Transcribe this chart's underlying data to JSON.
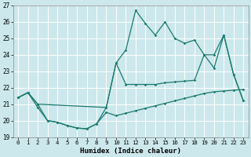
{
  "xlabel": "Humidex (Indice chaleur)",
  "bg_color": "#cce8ec",
  "grid_color": "#ffffff",
  "line_color": "#1a7a6e",
  "xlim": [
    -0.5,
    23.5
  ],
  "ylim": [
    19,
    27
  ],
  "yticks": [
    19,
    20,
    21,
    22,
    23,
    24,
    25,
    26,
    27
  ],
  "xticks": [
    0,
    1,
    2,
    3,
    4,
    5,
    6,
    7,
    8,
    9,
    10,
    11,
    12,
    13,
    14,
    15,
    16,
    17,
    18,
    19,
    20,
    21,
    22,
    23
  ],
  "line_top_x": [
    0,
    1,
    2,
    3,
    4,
    5,
    6,
    7,
    8,
    9,
    10,
    11,
    12,
    13,
    14,
    15,
    16,
    17,
    18,
    19,
    20,
    21,
    22,
    23
  ],
  "line_top_y": [
    21.4,
    21.7,
    21.0,
    20.0,
    19.9,
    19.7,
    19.55,
    19.5,
    19.8,
    20.8,
    23.5,
    24.3,
    26.7,
    25.9,
    25.2,
    26.0,
    25.0,
    24.7,
    24.9,
    24.0,
    23.2,
    25.2,
    22.8,
    21.2
  ],
  "line_mid_x": [
    0,
    1,
    2,
    9,
    10,
    11,
    12,
    13,
    14,
    15,
    16,
    17,
    18,
    19,
    20,
    21,
    22,
    23
  ],
  "line_mid_y": [
    21.4,
    21.7,
    21.0,
    20.8,
    23.5,
    22.2,
    22.2,
    22.2,
    22.2,
    22.3,
    22.35,
    22.4,
    22.45,
    24.0,
    24.0,
    25.2,
    22.8,
    21.2
  ],
  "line_bot_x": [
    0,
    1,
    2,
    3,
    4,
    5,
    6,
    7,
    8,
    9,
    10,
    11,
    12,
    13,
    14,
    15,
    16,
    17,
    18,
    19,
    20,
    21,
    22,
    23
  ],
  "line_bot_y": [
    21.4,
    21.7,
    20.8,
    20.0,
    19.9,
    19.7,
    19.55,
    19.5,
    19.8,
    20.5,
    20.3,
    20.45,
    20.6,
    20.75,
    20.9,
    21.05,
    21.2,
    21.35,
    21.5,
    21.65,
    21.75,
    21.8,
    21.85,
    21.9
  ]
}
